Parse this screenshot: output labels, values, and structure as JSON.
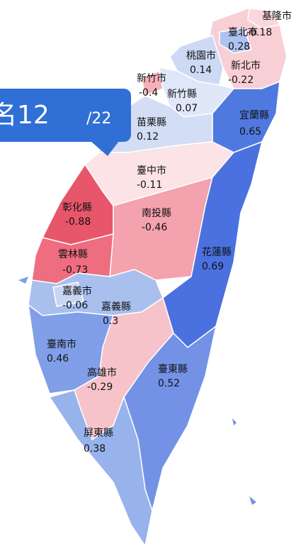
{
  "callout": {
    "rank": "名12",
    "total": "/22"
  },
  "regions": [
    {
      "name": "新北市",
      "value": -0.22,
      "color": "#f8cfd5"
    },
    {
      "name": "基隆市",
      "value": -0.18,
      "color": "#f9d8dd"
    },
    {
      "name": "臺北市",
      "value": 0.28,
      "color": "#aec2ef"
    },
    {
      "name": "桃園市",
      "value": 0.14,
      "color": "#ced9f5"
    },
    {
      "name": "新竹市",
      "value": -0.4,
      "color": "#f5b0ba"
    },
    {
      "name": "新竹縣",
      "value": 0.07,
      "color": "#dfe7f8"
    },
    {
      "name": "宜蘭縣",
      "value": 0.65,
      "color": "#5079e0"
    },
    {
      "name": "苗栗縣",
      "value": 0.12,
      "color": "#d3ddf6"
    },
    {
      "name": "臺中市",
      "value": -0.11,
      "color": "#fbe3e6"
    },
    {
      "name": "彰化縣",
      "value": -0.88,
      "color": "#e8566c"
    },
    {
      "name": "南投縣",
      "value": -0.46,
      "color": "#f4a2ae"
    },
    {
      "name": "雲林縣",
      "value": -0.73,
      "color": "#ee6d7f"
    },
    {
      "name": "花蓮縣",
      "value": 0.69,
      "color": "#4a71df"
    },
    {
      "name": "嘉義縣",
      "value": 0.3,
      "color": "#a9bfee"
    },
    {
      "name": "嘉義市",
      "value": -0.06,
      "color": "#c9d6f3"
    },
    {
      "name": "臺南市",
      "value": 0.46,
      "color": "#809fe8"
    },
    {
      "name": "高雄市",
      "value": -0.29,
      "color": "#f7c3ca"
    },
    {
      "name": "臺東縣",
      "value": 0.52,
      "color": "#7392e6"
    },
    {
      "name": "屏東縣",
      "value": 0.38,
      "color": "#98b2ec"
    }
  ]
}
